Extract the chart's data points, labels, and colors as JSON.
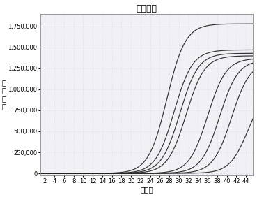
{
  "title": "扩增曲线",
  "xlabel": "循环数",
  "ylabel": "荧\n光\n信\n号",
  "xlim": [
    1,
    45.5
  ],
  "ylim": [
    -20000,
    1900000
  ],
  "xticks": [
    2,
    4,
    6,
    8,
    10,
    12,
    14,
    16,
    18,
    20,
    22,
    24,
    26,
    28,
    30,
    32,
    34,
    36,
    38,
    40,
    42,
    44
  ],
  "yticks": [
    0,
    250000,
    500000,
    750000,
    1000000,
    1250000,
    1500000,
    1750000
  ],
  "ytick_labels": [
    "0",
    "250,000",
    "500,000",
    "750,000",
    "1,000,000",
    "1,250,000",
    "1,500,000",
    "1,750,000"
  ],
  "background_color": "#f5f5f8",
  "plot_bg_color": "#f0f0f5",
  "grid_color": "#d8d8e8",
  "line_color": "#222222",
  "curves": [
    {
      "midpoint": 27.5,
      "ymax": 1780000,
      "k": 0.52
    },
    {
      "midpoint": 29.0,
      "ymax": 1470000,
      "k": 0.52
    },
    {
      "midpoint": 30.2,
      "ymax": 1430000,
      "k": 0.52
    },
    {
      "midpoint": 31.5,
      "ymax": 1400000,
      "k": 0.52
    },
    {
      "midpoint": 36.0,
      "ymax": 1370000,
      "k": 0.52
    },
    {
      "midpoint": 38.5,
      "ymax": 1350000,
      "k": 0.52
    },
    {
      "midpoint": 41.0,
      "ymax": 1330000,
      "k": 0.52
    },
    {
      "midpoint": 44.5,
      "ymax": 1050000,
      "k": 0.52
    }
  ],
  "title_fontsize": 9,
  "axis_label_fontsize": 7.5,
  "tick_fontsize": 6
}
